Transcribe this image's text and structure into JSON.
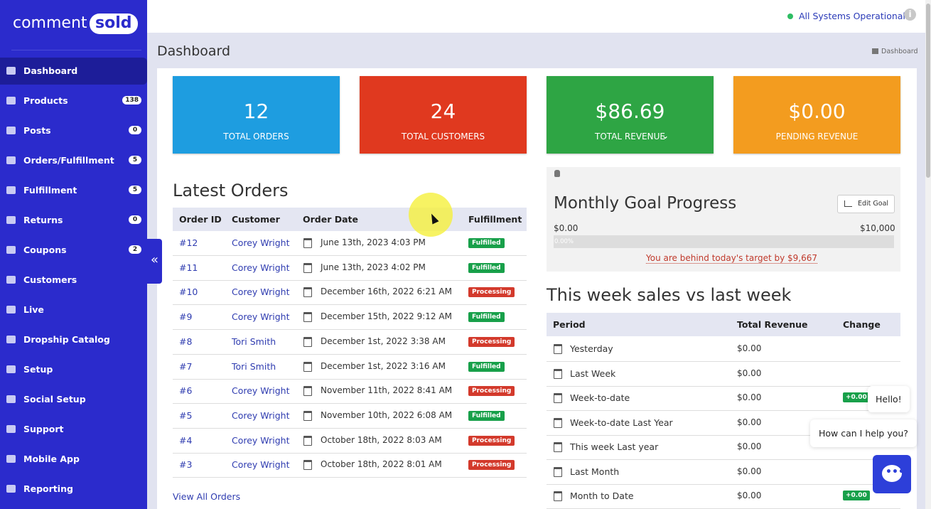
{
  "brand": {
    "left": "comment",
    "right": "sold"
  },
  "status": "All Systems Operational",
  "nav": [
    {
      "label": "Dashboard"
    },
    {
      "label": "Products",
      "badge": "138"
    },
    {
      "label": "Posts",
      "badge": "0"
    },
    {
      "label": "Orders/Fulfillment",
      "badge": "5"
    },
    {
      "label": "Fulfillment",
      "badge": "5"
    },
    {
      "label": "Returns",
      "badge": "0"
    },
    {
      "label": "Coupons",
      "badge": "2"
    },
    {
      "label": "Customers"
    },
    {
      "label": "Live"
    },
    {
      "label": "Dropship Catalog"
    },
    {
      "label": "Setup"
    },
    {
      "label": "Social Setup"
    },
    {
      "label": "Support"
    },
    {
      "label": "Mobile App"
    },
    {
      "label": "Reporting"
    }
  ],
  "header": {
    "title": "Dashboard",
    "breadcrumb": "Dashboard"
  },
  "stats": [
    {
      "value": "12",
      "label": "TOTAL ORDERS",
      "color": "#1e9de0"
    },
    {
      "value": "24",
      "label": "TOTAL CUSTOMERS",
      "color": "#e0391f"
    },
    {
      "value": "$86.69",
      "label": "TOTAL REVENUE",
      "color": "#2ea544"
    },
    {
      "value": "$0.00",
      "label": "PENDING REVENUE",
      "color": "#f39c1f"
    }
  ],
  "orders": {
    "title": "Latest Orders",
    "columns": [
      "Order ID",
      "Customer",
      "Order Date",
      "Fulfillment"
    ],
    "rows": [
      {
        "id": "#12",
        "customer": "Corey Wright",
        "date": "June 13th, 2023 4:03 PM",
        "status": "Fulfilled",
        "status_color": "#18a04a"
      },
      {
        "id": "#11",
        "customer": "Corey Wright",
        "date": "June 13th, 2023 4:02 PM",
        "status": "Fulfilled",
        "status_color": "#18a04a"
      },
      {
        "id": "#10",
        "customer": "Corey Wright",
        "date": "December 16th, 2022 6:21 AM",
        "status": "Processing",
        "status_color": "#d33a2c"
      },
      {
        "id": "#9",
        "customer": "Corey Wright",
        "date": "December 15th, 2022 9:12 AM",
        "status": "Fulfilled",
        "status_color": "#18a04a"
      },
      {
        "id": "#8",
        "customer": "Tori Smith",
        "date": "December 1st, 2022 3:38 AM",
        "status": "Processing",
        "status_color": "#d33a2c"
      },
      {
        "id": "#7",
        "customer": "Tori Smith",
        "date": "December 1st, 2022 3:16 AM",
        "status": "Fulfilled",
        "status_color": "#18a04a"
      },
      {
        "id": "#6",
        "customer": "Corey Wright",
        "date": "November 11th, 2022 8:41 AM",
        "status": "Processing",
        "status_color": "#d33a2c"
      },
      {
        "id": "#5",
        "customer": "Corey Wright",
        "date": "November 10th, 2022 6:08 AM",
        "status": "Fulfilled",
        "status_color": "#18a04a"
      },
      {
        "id": "#4",
        "customer": "Corey Wright",
        "date": "October 18th, 2022 8:03 AM",
        "status": "Processing",
        "status_color": "#d33a2c"
      },
      {
        "id": "#3",
        "customer": "Corey Wright",
        "date": "October 18th, 2022 8:01 AM",
        "status": "Processing",
        "status_color": "#d33a2c"
      }
    ],
    "link": "View All Orders"
  },
  "goal": {
    "title": "Monthly Goal Progress",
    "button": "Edit Goal",
    "min": "$0.00",
    "max": "$10,000",
    "progress": "0.00%",
    "note": "You are behind today's target by $9,667"
  },
  "weekly": {
    "title": "This week sales vs last week",
    "columns": [
      "Period",
      "Total Revenue",
      "Change"
    ],
    "rows": [
      {
        "period": "Yesterday",
        "revenue": "$0.00"
      },
      {
        "period": "Last Week",
        "revenue": "$0.00"
      },
      {
        "period": "Week-to-date",
        "revenue": "$0.00",
        "change": "+0.00"
      },
      {
        "period": "Week-to-date Last Year",
        "revenue": "$0.00"
      },
      {
        "period": "This week Last year",
        "revenue": "$0.00"
      },
      {
        "period": "Last Month",
        "revenue": "$0.00"
      },
      {
        "period": "Month to Date",
        "revenue": "$0.00",
        "change": "+0.00"
      }
    ]
  },
  "chat": [
    "Hello!",
    "How can I help you?"
  ]
}
